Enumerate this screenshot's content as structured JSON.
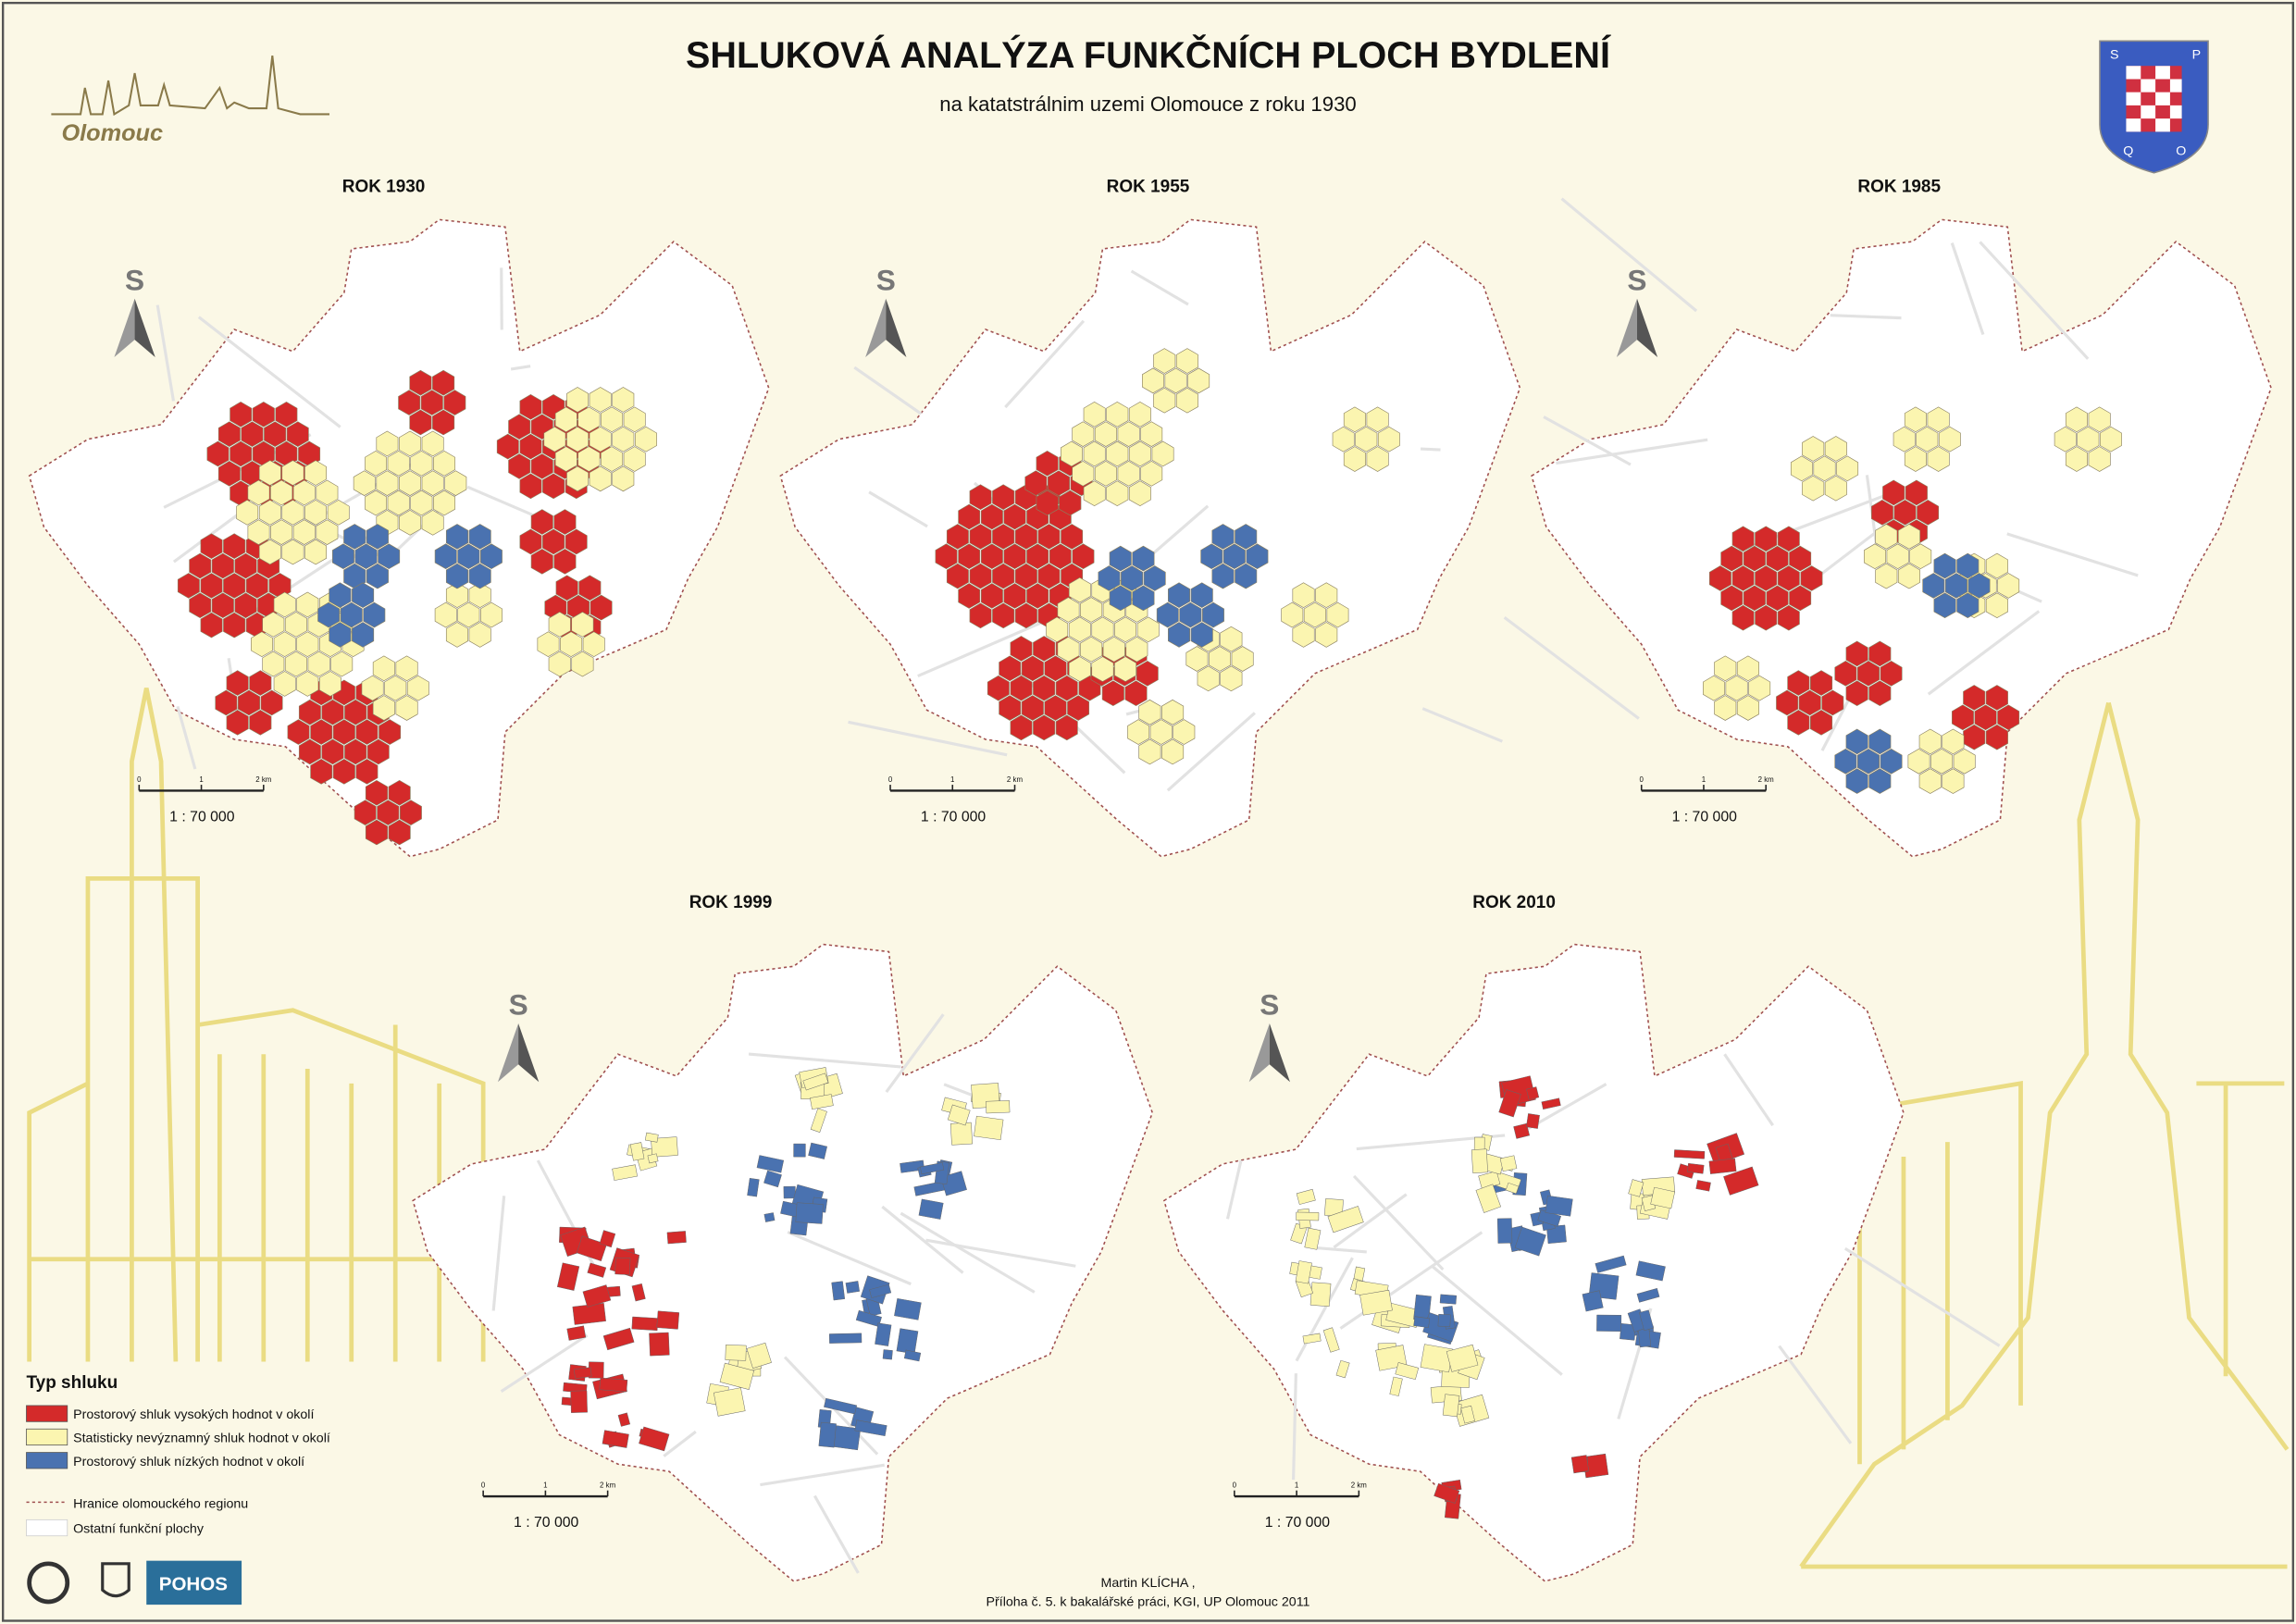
{
  "header": {
    "title": "SHLUKOVÁ ANALÝZA FUNKČNÍCH PLOCH BYDLENÍ",
    "subtitle": "na katatstrálnim uzemi Olomouce z roku 1930",
    "logo_text": "Olomouc",
    "coat_of_arms": [
      "S",
      "P",
      "Q",
      "O"
    ]
  },
  "maps": [
    {
      "title": "ROK 1930",
      "north": "S",
      "scale": {
        "ticks": [
          "0",
          "1",
          "2 km"
        ],
        "ratio": "1 : 70 000"
      }
    },
    {
      "title": "ROK 1955",
      "north": "S",
      "scale": {
        "ticks": [
          "0",
          "1",
          "2 km"
        ],
        "ratio": "1 : 70 000"
      }
    },
    {
      "title": "ROK 1985",
      "north": "S",
      "scale": {
        "ticks": [
          "0",
          "1",
          "2 km"
        ],
        "ratio": "1 : 70 000"
      }
    },
    {
      "title": "ROK 1999",
      "north": "S",
      "scale": {
        "ticks": [
          "0",
          "1",
          "2 km"
        ],
        "ratio": "1 : 70 000"
      }
    },
    {
      "title": "ROK 2010",
      "north": "S",
      "scale": {
        "ticks": [
          "0",
          "1",
          "2 km"
        ],
        "ratio": "1 : 70 000"
      }
    }
  ],
  "legend": {
    "title": "Typ shluku",
    "items": [
      "Prostorový shluk vysokých hodnot v okolí",
      "Statisticky nevýznamný shluk hodnot v okolí",
      "Prostorový shluk nízkých hodnot v okolí"
    ],
    "lines": [
      "Hranice olomouckého regionu",
      "Ostatní funkční plochy"
    ]
  },
  "footer": {
    "author": "Martin KLÍCHA ,",
    "note": "Příloha č. 5. k bakalářské práci, KGI, UP Olomouc 2011",
    "logo": "POHOS"
  }
}
